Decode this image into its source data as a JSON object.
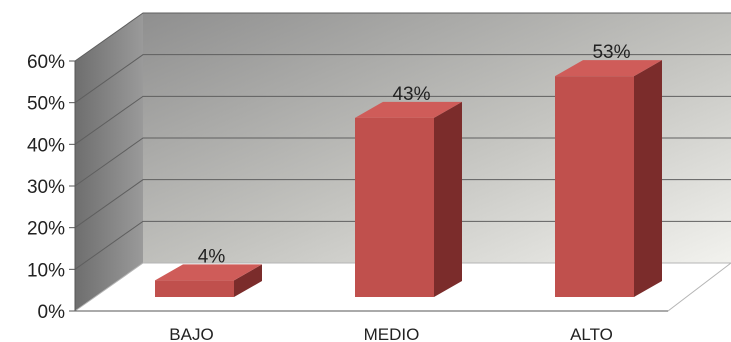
{
  "chart_data": {
    "type": "bar",
    "title": "",
    "xlabel": "",
    "ylabel": "",
    "categories": [
      "BAJO",
      "MEDIO",
      "ALTO"
    ],
    "values": [
      4,
      43,
      53
    ],
    "data_labels": [
      "4%",
      "43%",
      "53%"
    ],
    "ylim": [
      0,
      60
    ],
    "y_ticks": [
      {
        "value": 0,
        "label": "0%"
      },
      {
        "value": 10,
        "label": "10%"
      },
      {
        "value": 20,
        "label": "20%"
      },
      {
        "value": 30,
        "label": "30%"
      },
      {
        "value": 40,
        "label": "40%"
      },
      {
        "value": 50,
        "label": "50%"
      },
      {
        "value": 60,
        "label": "60%"
      }
    ],
    "grid": true,
    "legend": "none",
    "style": "3d",
    "colors": {
      "bar_front": "#c0504d",
      "bar_top": "#cf5c59",
      "bar_side": "#7b2c2b",
      "wall_back_dark": "#8f8f8f",
      "wall_back_light": "#f2f2ee",
      "wall_side": "#7e7e7e",
      "floor": "#ffffff",
      "grid_line": "#5f5f5f",
      "text": "#222222"
    }
  }
}
